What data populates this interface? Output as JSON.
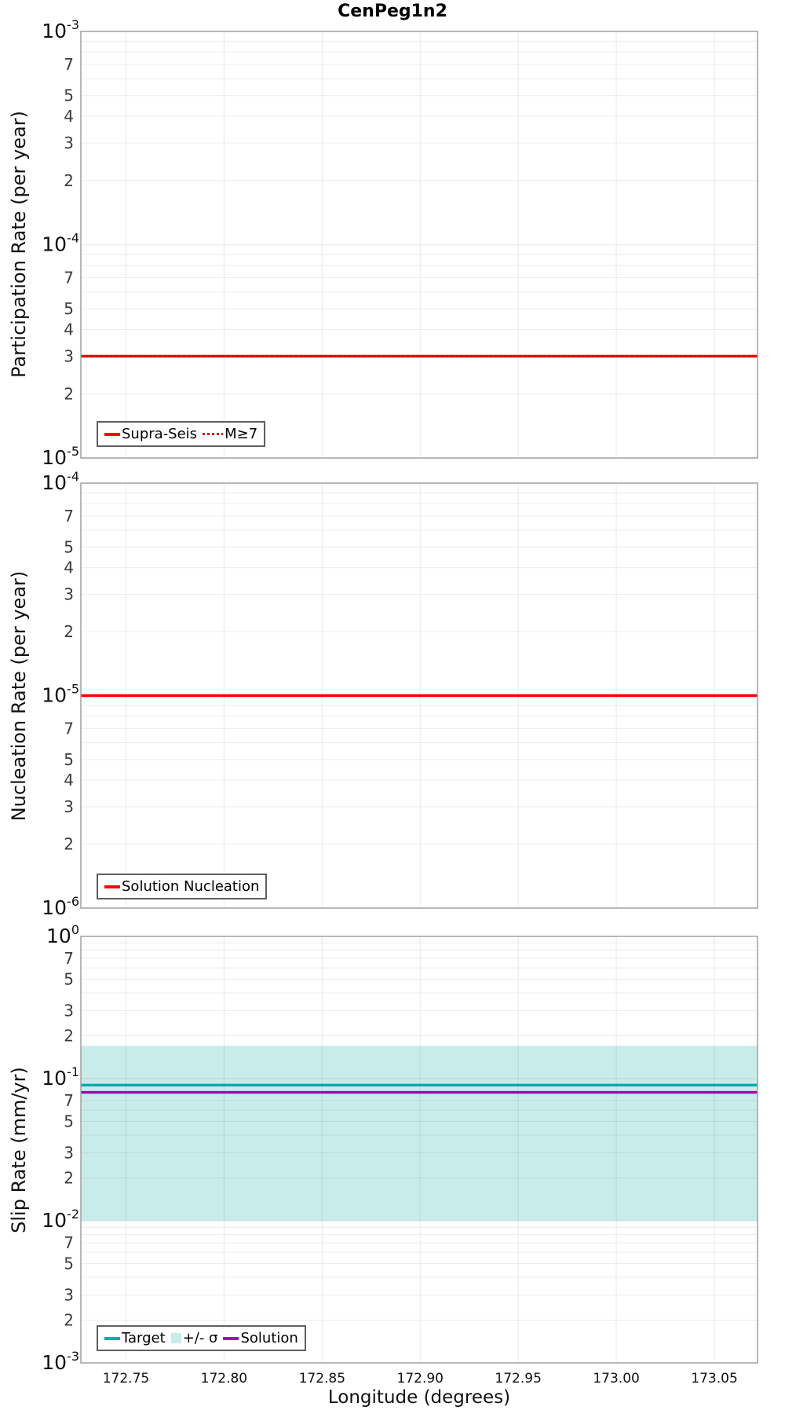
{
  "figure": {
    "title": "CenPeg1n2"
  },
  "x_axis": {
    "label": "Longitude (degrees)",
    "lim": [
      172.727,
      173.072
    ],
    "ticks": [
      {
        "label": "172.75",
        "value": 172.75
      },
      {
        "label": "172.80",
        "value": 172.8
      },
      {
        "label": "172.85",
        "value": 172.85
      },
      {
        "label": "172.90",
        "value": 172.9
      },
      {
        "label": "172.95",
        "value": 172.95
      },
      {
        "label": "173.00",
        "value": 173.0
      },
      {
        "label": "173.05",
        "value": 173.05
      }
    ]
  },
  "chart_data": [
    {
      "type": "line",
      "ylabel": "Participation Rate (per year)",
      "xlabel": "",
      "yscale": "log",
      "ylim": [
        1e-05,
        0.001
      ],
      "decades": [
        -3,
        -4,
        -5
      ],
      "minor_tick_labels": [
        "7",
        "5",
        "4",
        "3",
        "2"
      ],
      "grid": true,
      "series": [
        {
          "name": "Supra-Seis",
          "style": "solid",
          "color": "#ff0000",
          "value": 3e-05
        },
        {
          "name": "M≥7",
          "style": "dotted",
          "color": "#d40000",
          "value": 3e-05
        }
      ],
      "legend": {
        "position": "lower-left",
        "items": [
          {
            "label": "Supra-Seis",
            "marker": "line-solid",
            "color": "#ff0000"
          },
          {
            "label": "M≥7",
            "marker": "line-dotted",
            "color": "#d40000"
          }
        ]
      }
    },
    {
      "type": "line",
      "ylabel": "Nucleation Rate (per year)",
      "xlabel": "",
      "yscale": "log",
      "ylim": [
        1e-06,
        0.0001
      ],
      "decades": [
        -4,
        -5,
        -6
      ],
      "minor_tick_labels": [
        "7",
        "5",
        "4",
        "3",
        "2"
      ],
      "grid": true,
      "series": [
        {
          "name": "Solution Nucleation",
          "style": "solid",
          "color": "#ff0000",
          "value": 1e-05
        }
      ],
      "legend": {
        "position": "lower-left",
        "items": [
          {
            "label": "Solution Nucleation",
            "marker": "line-solid",
            "color": "#ff0000"
          }
        ]
      }
    },
    {
      "type": "line",
      "ylabel": "Slip Rate (mm/yr)",
      "xlabel": "Longitude (degrees)",
      "yscale": "log",
      "ylim": [
        0.001,
        1.0
      ],
      "decades": [
        0,
        -1,
        -2,
        -3
      ],
      "minor_tick_labels": [
        "7",
        "5",
        "3",
        "2"
      ],
      "grid": true,
      "band": {
        "name": "+/- σ",
        "low": 0.01,
        "high": 0.17,
        "color": "#c8ecea"
      },
      "series": [
        {
          "name": "Target",
          "style": "solid",
          "color": "#00abab",
          "value": 0.09
        },
        {
          "name": "Solution",
          "style": "solid",
          "color": "#ab00ab",
          "value": 0.08
        }
      ],
      "legend": {
        "position": "lower-left",
        "items": [
          {
            "label": "Target",
            "marker": "line-solid",
            "color": "#00abab"
          },
          {
            "label": "+/- σ",
            "marker": "patch",
            "color": "#c8ecea"
          },
          {
            "label": "Solution",
            "marker": "line-solid",
            "color": "#ab00ab"
          }
        ]
      }
    }
  ]
}
